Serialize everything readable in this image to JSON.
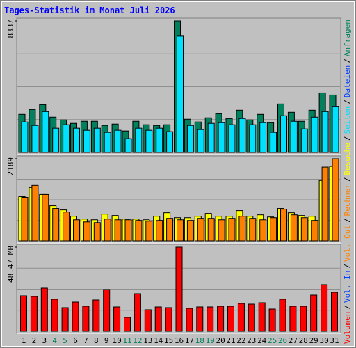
{
  "chart_data": {
    "type": "bar",
    "title": "Tages-Statistik im Monat Juli 2026",
    "categories": [
      "1",
      "2",
      "3",
      "4",
      "5",
      "6",
      "7",
      "8",
      "9",
      "10",
      "11",
      "12",
      "13",
      "14",
      "15",
      "16",
      "17",
      "18",
      "19",
      "20",
      "21",
      "22",
      "23",
      "24",
      "25",
      "26",
      "27",
      "28",
      "29",
      "30",
      "31"
    ],
    "category_colors": [
      "#000000",
      "#000000",
      "#000000",
      "#00805c",
      "#00805c",
      "#000000",
      "#000000",
      "#000000",
      "#000000",
      "#000000",
      "#00805c",
      "#00805c",
      "#000000",
      "#000000",
      "#000000",
      "#000000",
      "#000000",
      "#00805c",
      "#00805c",
      "#000000",
      "#000000",
      "#000000",
      "#000000",
      "#000000",
      "#00805c",
      "#00805c",
      "#000000",
      "#000000",
      "#000000",
      "#000000",
      "#000000"
    ],
    "legend_separator": "/",
    "legend": [
      {
        "text": "Volumen",
        "color": "#ff0000"
      },
      {
        "text": "Vol. In",
        "color": "#0040ff"
      },
      {
        "text": "Vol. Out",
        "color": "#ff8000"
      },
      {
        "text": "Rechner",
        "color": "#ff8000"
      },
      {
        "text": "Besuche",
        "color": "#ffff00"
      },
      {
        "text": "Seiten",
        "color": "#00e0ff"
      },
      {
        "text": "Dateien",
        "color": "#0040ff"
      },
      {
        "text": "Anfragen",
        "color": "#00805c"
      }
    ],
    "panels": [
      {
        "ylim": [
          0,
          8337
        ],
        "yticks": [
          8337
        ],
        "series": [
          {
            "color": "#00805c",
            "values": [
              2413,
              2721,
              3028,
              2238,
              2062,
              1843,
              1975,
              1975,
              1711,
              1799,
              1360,
              1975,
              1755,
              1711,
              1755,
              8337,
              2106,
              1931,
              2194,
              2457,
              2150,
              2677,
              2062,
              2413,
              1887,
              3072,
              2545,
              1975,
              2677,
              3774,
              3642
            ]
          },
          {
            "color": "#00e0ff",
            "values": [
              1931,
              1711,
              2589,
              1536,
              1755,
              1536,
              1404,
              1536,
              1273,
              1404,
              878,
              1536,
              1404,
              1536,
              1316,
              7372,
              1711,
              1448,
              1843,
              1887,
              1755,
              2150,
              1755,
              1887,
              1273,
              2326,
              1975,
              1492,
              2238,
              2589,
              2896
            ]
          }
        ]
      },
      {
        "ylim": [
          0,
          2189
        ],
        "yticks": [
          2189
        ],
        "series": [
          {
            "color": "#ffff00",
            "values": [
              1179,
              1422,
              1235,
              935,
              823,
              655,
              580,
              561,
              711,
              674,
              580,
              580,
              561,
              655,
              748,
              617,
              617,
              655,
              730,
              655,
              655,
              805,
              655,
              692,
              636,
              861,
              748,
              674,
              655,
              1609,
              1983
            ]
          },
          {
            "color": "#ff8000",
            "values": [
              1160,
              1478,
              1235,
              861,
              767,
              561,
              505,
              486,
              580,
              561,
              561,
              543,
              524,
              543,
              599,
              561,
              543,
              599,
              599,
              561,
              599,
              655,
              599,
              561,
              617,
              842,
              692,
              617,
              543,
              1965,
              2189
            ]
          }
        ]
      },
      {
        "ylim": [
          0,
          48.47
        ],
        "yticks": [
          {
            "value": 48.47,
            "label": "48.47 MB"
          }
        ],
        "series": [
          {
            "color": "#ff0000",
            "values": [
              20.43,
              20.03,
              24.84,
              18.43,
              13.62,
              16.82,
              14.42,
              18.03,
              24.04,
              14.02,
              8.01,
              21.63,
              12.42,
              14.02,
              13.62,
              48.47,
              13.22,
              14.02,
              14.02,
              14.42,
              14.42,
              16.02,
              15.62,
              16.42,
              12.82,
              18.43,
              14.42,
              14.42,
              20.83,
              26.84,
              22.43
            ]
          }
        ]
      }
    ]
  }
}
